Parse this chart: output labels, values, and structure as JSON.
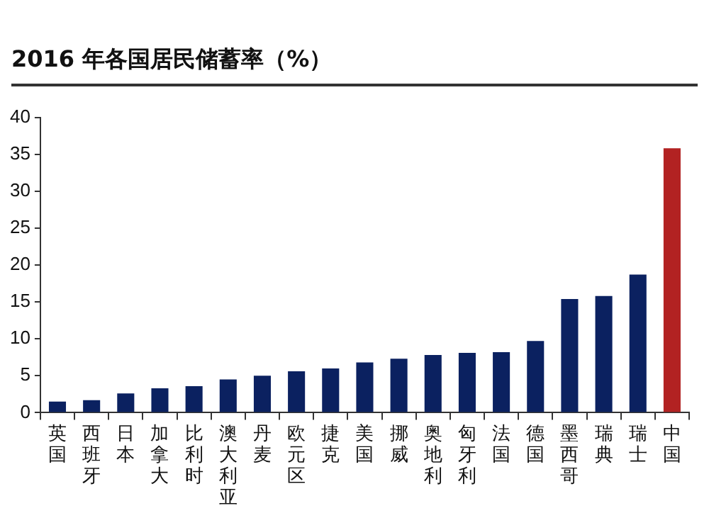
{
  "chart_data": {
    "type": "bar",
    "title": "2016 年各国居民储蓄率（%）",
    "categories": [
      "英国",
      "西班牙",
      "日本",
      "加拿大",
      "比利时",
      "澳大利亚",
      "丹麦",
      "欧元区",
      "捷克",
      "美国",
      "挪威",
      "奥地利",
      "匈牙利",
      "法国",
      "德国",
      "墨西哥",
      "瑞典",
      "瑞士",
      "中国"
    ],
    "values": [
      1.5,
      1.7,
      2.6,
      3.3,
      3.6,
      4.5,
      5.0,
      5.6,
      6.0,
      6.8,
      7.3,
      7.8,
      8.1,
      8.2,
      9.7,
      15.4,
      15.8,
      18.7,
      35.8
    ],
    "colors": [
      "#0b2160",
      "#0b2160",
      "#0b2160",
      "#0b2160",
      "#0b2160",
      "#0b2160",
      "#0b2160",
      "#0b2160",
      "#0b2160",
      "#0b2160",
      "#0b2160",
      "#0b2160",
      "#0b2160",
      "#0b2160",
      "#0b2160",
      "#0b2160",
      "#0b2160",
      "#0b2160",
      "#b22222"
    ],
    "ylim": [
      0,
      40
    ],
    "yticks": [
      0,
      5,
      10,
      15,
      20,
      25,
      30,
      35,
      40
    ],
    "grid": false,
    "legend": false
  }
}
